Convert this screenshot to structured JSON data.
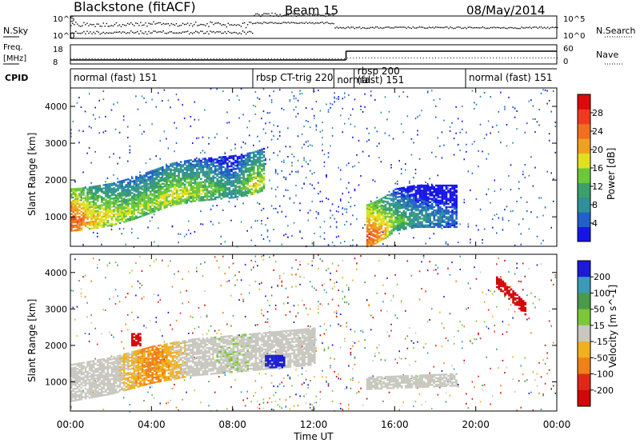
{
  "header": {
    "station": "Blackstone (fitACF)",
    "beam": "Beam 15",
    "date": "08/May/2014"
  },
  "labels": {
    "nsky": "N.Sky",
    "nsearch": "N.Search",
    "freq_line1": "Freq.",
    "freq_line2": "[MHz]",
    "nave": "Nave",
    "cpid": "CPID",
    "xlabel": "Time UT",
    "slant_range": "Slant Range [km]"
  },
  "noise_panel": {
    "left_ticks": [
      "10^5",
      "10^0"
    ],
    "right_ticks": [
      "10^5",
      "10^0"
    ]
  },
  "freq_panel": {
    "left_ticks": [
      "18",
      "8"
    ],
    "right_ticks": [
      "60",
      "0"
    ]
  },
  "cpid_segments": [
    {
      "label": "normal (fast) 151",
      "start": 0.0,
      "end": 9.0
    },
    {
      "label": "rbsp CT-trig 220",
      "start": 9.0,
      "end": 13.0
    },
    {
      "label": "normal",
      "start": 13.0,
      "end": 14.0
    },
    {
      "label": "rbsp 200",
      "start": 14.0,
      "end": 15.0
    },
    {
      "label": "(fast) 151",
      "start": 14.0,
      "end": 19.5
    },
    {
      "label": "normal (fast) 151",
      "start": 19.5,
      "end": 24.0
    }
  ],
  "x_ticks": [
    "00:00",
    "04:00",
    "08:00",
    "12:00",
    "16:00",
    "20:00",
    "00:00"
  ],
  "y_ticks": [
    "1000",
    "2000",
    "3000",
    "4000"
  ],
  "power_bar": {
    "label": "Power [dB]",
    "ticks": [
      "4",
      "8",
      "12",
      "16",
      "20",
      "24",
      "28"
    ],
    "colors": [
      "#1515e6",
      "#2060c8",
      "#2f8f9a",
      "#3aa06a",
      "#6ac83a",
      "#e0e020",
      "#f0a020",
      "#f07020",
      "#f03a20",
      "#dc0a0a"
    ]
  },
  "velocity_bar": {
    "label": "Velocity [m s^-1]",
    "ticks": [
      "200",
      "100",
      "50",
      "15",
      "-15",
      "-50",
      "-100",
      "-200"
    ],
    "colors": [
      "#1a1ad8",
      "#3a9ab8",
      "#4a9a4a",
      "#7ac838",
      "#c8c8c0",
      "#f0b020",
      "#f08018",
      "#e02818",
      "#d00808"
    ]
  },
  "chart_data": [
    {
      "type": "heatmap",
      "title": "Power",
      "xlabel": "Time UT",
      "ylabel": "Slant Range [km]",
      "xlim": [
        0,
        24
      ],
      "ylim": [
        200,
        4500
      ],
      "colorbar_label": "Power [dB]",
      "colorbar_range": [
        0,
        32
      ],
      "features": [
        {
          "t": [
            0.0,
            0.5,
            1.0,
            2.0,
            3.0,
            4.0,
            5.0,
            6.0,
            7.0,
            8.0,
            9.0,
            9.5
          ],
          "range_km": [
            900,
            920,
            960,
            1050,
            1200,
            1400,
            1600,
            1700,
            1750,
            1800,
            1900,
            2000
          ],
          "power_db": [
            28,
            26,
            22,
            20,
            18,
            18,
            20,
            18,
            16,
            12,
            20,
            18
          ]
        },
        {
          "t": [
            14.5,
            15.0,
            15.5,
            16.0,
            17.0,
            18.0,
            19.0
          ],
          "range_km": [
            450,
            550,
            700,
            900,
            1000,
            1000,
            1000
          ],
          "power_db": [
            28,
            26,
            22,
            16,
            12,
            10,
            8
          ]
        }
      ]
    },
    {
      "type": "heatmap",
      "title": "Velocity",
      "xlabel": "Time UT",
      "ylabel": "Slant Range [km]",
      "xlim": [
        0,
        24
      ],
      "ylim": [
        200,
        4500
      ],
      "colorbar_label": "Velocity [m s^-1]",
      "colorbar_range": [
        -250,
        250
      ],
      "features": [
        {
          "t": [
            0.0,
            2.0,
            4.0,
            6.0,
            8.0,
            10.0,
            12.0
          ],
          "range_km": [
            1000,
            1200,
            1500,
            1700,
            1800,
            1900,
            2000
          ],
          "velocity": [
            0,
            0,
            -40,
            0,
            10,
            0,
            0
          ]
        },
        {
          "t": [
            3.0,
            3.5
          ],
          "range_km": [
            2200,
            2200
          ],
          "velocity": [
            -200,
            -200
          ]
        },
        {
          "t": [
            9.5,
            10.5
          ],
          "range_km": [
            1600,
            1600
          ],
          "velocity": [
            200,
            200
          ]
        },
        {
          "t": [
            14.5,
            19.0
          ],
          "range_km": [
            1000,
            1100
          ],
          "velocity": [
            0,
            0
          ]
        },
        {
          "t": [
            21.0,
            22.5
          ],
          "range_km": [
            3800,
            3000
          ],
          "velocity": [
            -200,
            -200
          ]
        }
      ]
    }
  ]
}
